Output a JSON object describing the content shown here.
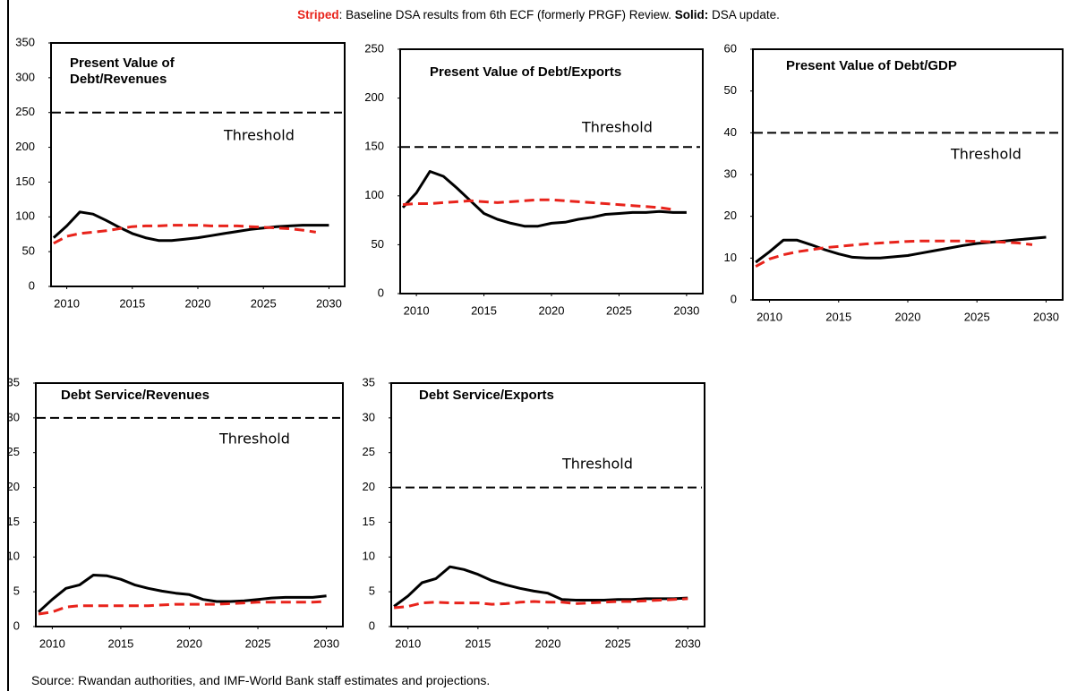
{
  "note": {
    "striped_label": "Striped",
    "striped_text": ": Baseline DSA results from 6th ECF (formerly PRGF) Review. ",
    "solid_label": "Solid:",
    "solid_text": " DSA update."
  },
  "source": "Source: Rwandan authorities, and IMF-World Bank staff estimates and projections.",
  "chart_data": [
    {
      "type": "line",
      "title": "Present Value of Debt/Revenues",
      "x": [
        2009,
        2010,
        2011,
        2012,
        2013,
        2014,
        2015,
        2016,
        2017,
        2018,
        2019,
        2020,
        2021,
        2022,
        2023,
        2024,
        2025,
        2026,
        2027,
        2028,
        2029,
        2030
      ],
      "series": [
        {
          "color": "#000000",
          "style": "solid",
          "values": [
            70,
            87,
            107,
            104,
            95,
            85,
            76,
            70,
            66,
            66,
            68,
            70,
            73,
            76,
            79,
            82,
            84,
            86,
            87,
            88,
            88,
            88
          ]
        },
        {
          "color": "#e8231b",
          "style": "dashed",
          "values": [
            62,
            72,
            76,
            78,
            80,
            83,
            86,
            87,
            87,
            88,
            88,
            88,
            87,
            87,
            87,
            86,
            85,
            84,
            83,
            81,
            78,
            null
          ]
        }
      ],
      "threshold": 250,
      "threshold_label": "Threshold",
      "xlim": [
        2008.8,
        2031.2
      ],
      "xticks": [
        2010,
        2015,
        2020,
        2025,
        2030
      ],
      "ylim": [
        0,
        350
      ],
      "yticks": [
        0,
        50,
        100,
        150,
        200,
        250,
        300,
        350
      ]
    },
    {
      "type": "line",
      "title": "Present Value of Debt/Exports",
      "x": [
        2009,
        2010,
        2011,
        2012,
        2013,
        2014,
        2015,
        2016,
        2017,
        2018,
        2019,
        2020,
        2021,
        2022,
        2023,
        2024,
        2025,
        2026,
        2027,
        2028,
        2029,
        2030
      ],
      "series": [
        {
          "color": "#000000",
          "style": "solid",
          "values": [
            88,
            103,
            125,
            120,
            108,
            95,
            82,
            76,
            72,
            69,
            69,
            72,
            73,
            76,
            78,
            81,
            82,
            83,
            83,
            84,
            83,
            83
          ]
        },
        {
          "color": "#e8231b",
          "style": "dashed",
          "values": [
            91,
            92,
            92,
            93,
            94,
            95,
            94,
            93,
            94,
            95,
            96,
            96,
            95,
            94,
            93,
            92,
            91,
            90,
            89,
            88,
            86,
            null
          ]
        }
      ],
      "threshold": 150,
      "threshold_label": "Threshold",
      "xlim": [
        2008.8,
        2031.2
      ],
      "xticks": [
        2010,
        2015,
        2020,
        2025,
        2030
      ],
      "ylim": [
        0,
        250
      ],
      "yticks": [
        0,
        50,
        100,
        150,
        200,
        250
      ]
    },
    {
      "type": "line",
      "title": "Present Value of Debt/GDP",
      "x": [
        2009,
        2010,
        2011,
        2012,
        2013,
        2014,
        2015,
        2016,
        2017,
        2018,
        2019,
        2020,
        2021,
        2022,
        2023,
        2024,
        2025,
        2026,
        2027,
        2028,
        2029,
        2030
      ],
      "series": [
        {
          "color": "#000000",
          "style": "solid",
          "values": [
            9,
            11.5,
            14.3,
            14.3,
            13.2,
            12,
            11,
            10.2,
            10,
            10,
            10.3,
            10.6,
            11.2,
            11.8,
            12.4,
            13,
            13.5,
            13.8,
            14.1,
            14.4,
            14.7,
            15
          ]
        },
        {
          "color": "#e8231b",
          "style": "dashed",
          "values": [
            8,
            9.8,
            10.8,
            11.5,
            12,
            12.5,
            12.8,
            13.1,
            13.4,
            13.6,
            13.8,
            14,
            14.1,
            14.1,
            14.1,
            14.1,
            14,
            13.9,
            13.8,
            13.6,
            13.2,
            null
          ]
        }
      ],
      "threshold": 40,
      "threshold_label": "Threshold",
      "xlim": [
        2008.8,
        2031.2
      ],
      "xticks": [
        2010,
        2015,
        2020,
        2025,
        2030
      ],
      "ylim": [
        0,
        60
      ],
      "yticks": [
        0,
        10,
        20,
        30,
        40,
        50,
        60
      ]
    },
    {
      "type": "line",
      "title": "Debt Service/Revenues",
      "x": [
        2009,
        2010,
        2011,
        2012,
        2013,
        2014,
        2015,
        2016,
        2017,
        2018,
        2019,
        2020,
        2021,
        2022,
        2023,
        2024,
        2025,
        2026,
        2027,
        2028,
        2029,
        2030
      ],
      "series": [
        {
          "color": "#000000",
          "style": "solid",
          "values": [
            2.1,
            3.9,
            5.5,
            6,
            7.4,
            7.3,
            6.8,
            6,
            5.5,
            5.1,
            4.8,
            4.6,
            3.9,
            3.6,
            3.6,
            3.7,
            3.9,
            4.1,
            4.2,
            4.2,
            4.2,
            4.4
          ]
        },
        {
          "color": "#e8231b",
          "style": "dashed",
          "values": [
            1.8,
            2.1,
            2.8,
            3,
            3,
            3,
            3,
            3,
            3,
            3.1,
            3.2,
            3.2,
            3.2,
            3.2,
            3.3,
            3.4,
            3.5,
            3.5,
            3.5,
            3.5,
            3.5,
            3.6
          ]
        }
      ],
      "threshold": 30,
      "threshold_label": "Threshold",
      "xlim": [
        2008.8,
        2031.2
      ],
      "xticks": [
        2010,
        2015,
        2020,
        2025,
        2030
      ],
      "ylim": [
        0,
        35
      ],
      "yticks": [
        0,
        5,
        10,
        15,
        20,
        25,
        30,
        35
      ]
    },
    {
      "type": "line",
      "title": "Debt Service/Exports",
      "x": [
        2009,
        2010,
        2011,
        2012,
        2013,
        2014,
        2015,
        2016,
        2017,
        2018,
        2019,
        2020,
        2021,
        2022,
        2023,
        2024,
        2025,
        2026,
        2027,
        2028,
        2029,
        2030
      ],
      "series": [
        {
          "color": "#000000",
          "style": "solid",
          "values": [
            2.9,
            4.4,
            6.3,
            6.9,
            8.6,
            8.2,
            7.5,
            6.6,
            6,
            5.5,
            5.1,
            4.8,
            3.9,
            3.8,
            3.8,
            3.8,
            3.9,
            3.9,
            4,
            4,
            4,
            4.1
          ]
        },
        {
          "color": "#e8231b",
          "style": "dashed",
          "values": [
            2.7,
            2.9,
            3.4,
            3.5,
            3.4,
            3.4,
            3.4,
            3.2,
            3.3,
            3.5,
            3.6,
            3.5,
            3.5,
            3.3,
            3.4,
            3.5,
            3.6,
            3.6,
            3.7,
            3.8,
            3.9,
            4
          ]
        }
      ],
      "threshold": 20,
      "threshold_label": "Threshold",
      "xlim": [
        2008.8,
        2031.2
      ],
      "xticks": [
        2010,
        2015,
        2020,
        2025,
        2030
      ],
      "ylim": [
        0,
        35
      ],
      "yticks": [
        0,
        5,
        10,
        15,
        20,
        25,
        30,
        35
      ]
    }
  ]
}
